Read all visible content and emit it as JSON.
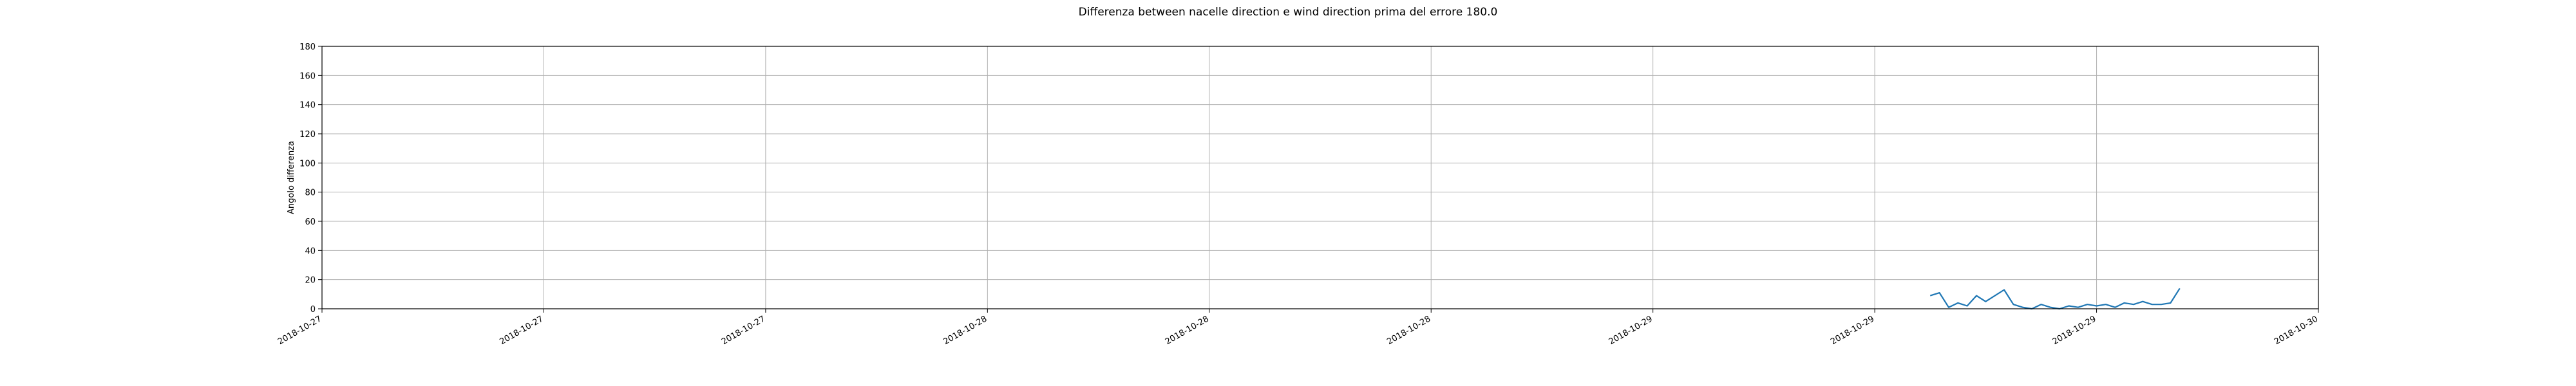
{
  "chart_data": {
    "type": "line",
    "title": "Differenza between nacelle direction e wind direction prima del errore 180.0",
    "xlabel": "",
    "ylabel": "Angolo differenza",
    "xlim": [
      "2018-10-27 00:00",
      "2018-10-30 00:00"
    ],
    "ylim": [
      0,
      180
    ],
    "grid": true,
    "x_tick_labels": [
      "2018-10-27",
      "2018-10-27",
      "2018-10-27",
      "2018-10-28",
      "2018-10-28",
      "2018-10-28",
      "2018-10-29",
      "2018-10-29",
      "2018-10-29",
      "2018-10-30"
    ],
    "y_ticks": [
      0,
      20,
      40,
      60,
      80,
      100,
      120,
      140,
      160,
      180
    ],
    "series": [
      {
        "color": "#1f77b4",
        "x": [
          "2018-10-29 10:00",
          "2018-10-29 10:20",
          "2018-10-29 10:40",
          "2018-10-29 11:00",
          "2018-10-29 11:20",
          "2018-10-29 11:40",
          "2018-10-29 12:00",
          "2018-10-29 12:20",
          "2018-10-29 12:40",
          "2018-10-29 13:00",
          "2018-10-29 13:20",
          "2018-10-29 13:40",
          "2018-10-29 14:00",
          "2018-10-29 14:20",
          "2018-10-29 14:40",
          "2018-10-29 15:00",
          "2018-10-29 15:20",
          "2018-10-29 15:40",
          "2018-10-29 16:00",
          "2018-10-29 16:20",
          "2018-10-29 16:40",
          "2018-10-29 17:00",
          "2018-10-29 17:20",
          "2018-10-29 17:40",
          "2018-10-29 18:00",
          "2018-10-29 18:20",
          "2018-10-29 18:40",
          "2018-10-29 19:00"
        ],
        "y": [
          9,
          11,
          1,
          4,
          2,
          9,
          5,
          9,
          13,
          3,
          1,
          0,
          3,
          1,
          0,
          2,
          1,
          3,
          2,
          3,
          1,
          4,
          3,
          5,
          3,
          3,
          4,
          14
        ]
      }
    ]
  }
}
